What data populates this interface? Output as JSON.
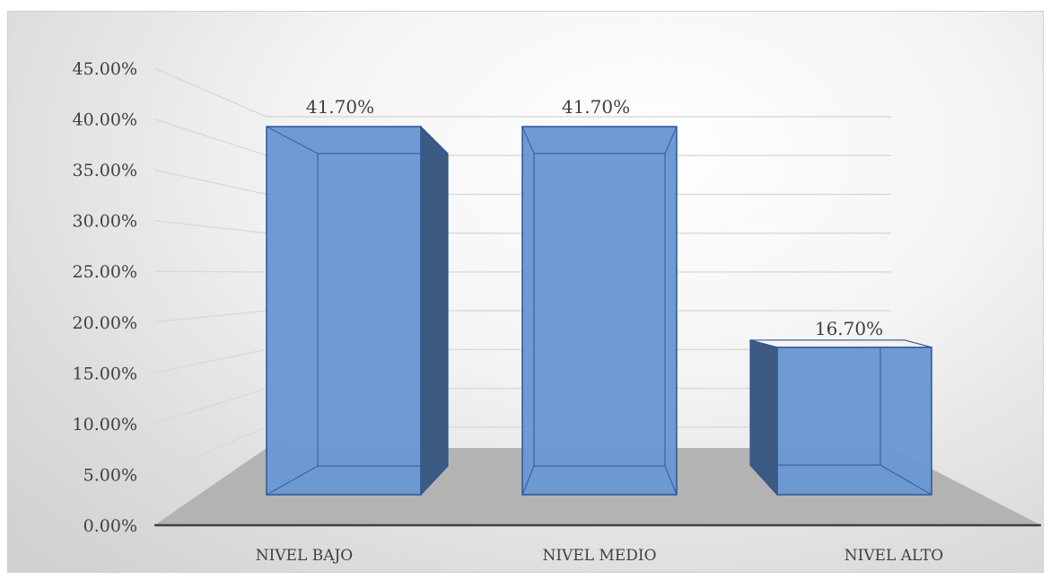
{
  "chart_data": {
    "type": "bar",
    "categories": [
      "NIVEL BAJO",
      "NIVEL MEDIO",
      "NIVEL ALTO"
    ],
    "values": [
      41.7,
      41.7,
      16.7
    ],
    "data_labels": [
      "41.70%",
      "41.70%",
      "16.70%"
    ],
    "y_ticks": [
      "0.00%",
      "5.00%",
      "10.00%",
      "15.00%",
      "20.00%",
      "25.00%",
      "30.00%",
      "35.00%",
      "40.00%",
      "45.00%"
    ],
    "ylim": [
      0,
      45
    ],
    "grid": true,
    "style": "3d-column",
    "colors": {
      "bar_front": "#6a98d2",
      "bar_side": "#3d5b82",
      "bar_edge": "#2f5597",
      "floor": "#b3b3b3",
      "gridline": "#d9d9d9",
      "axis": "#404040"
    }
  }
}
